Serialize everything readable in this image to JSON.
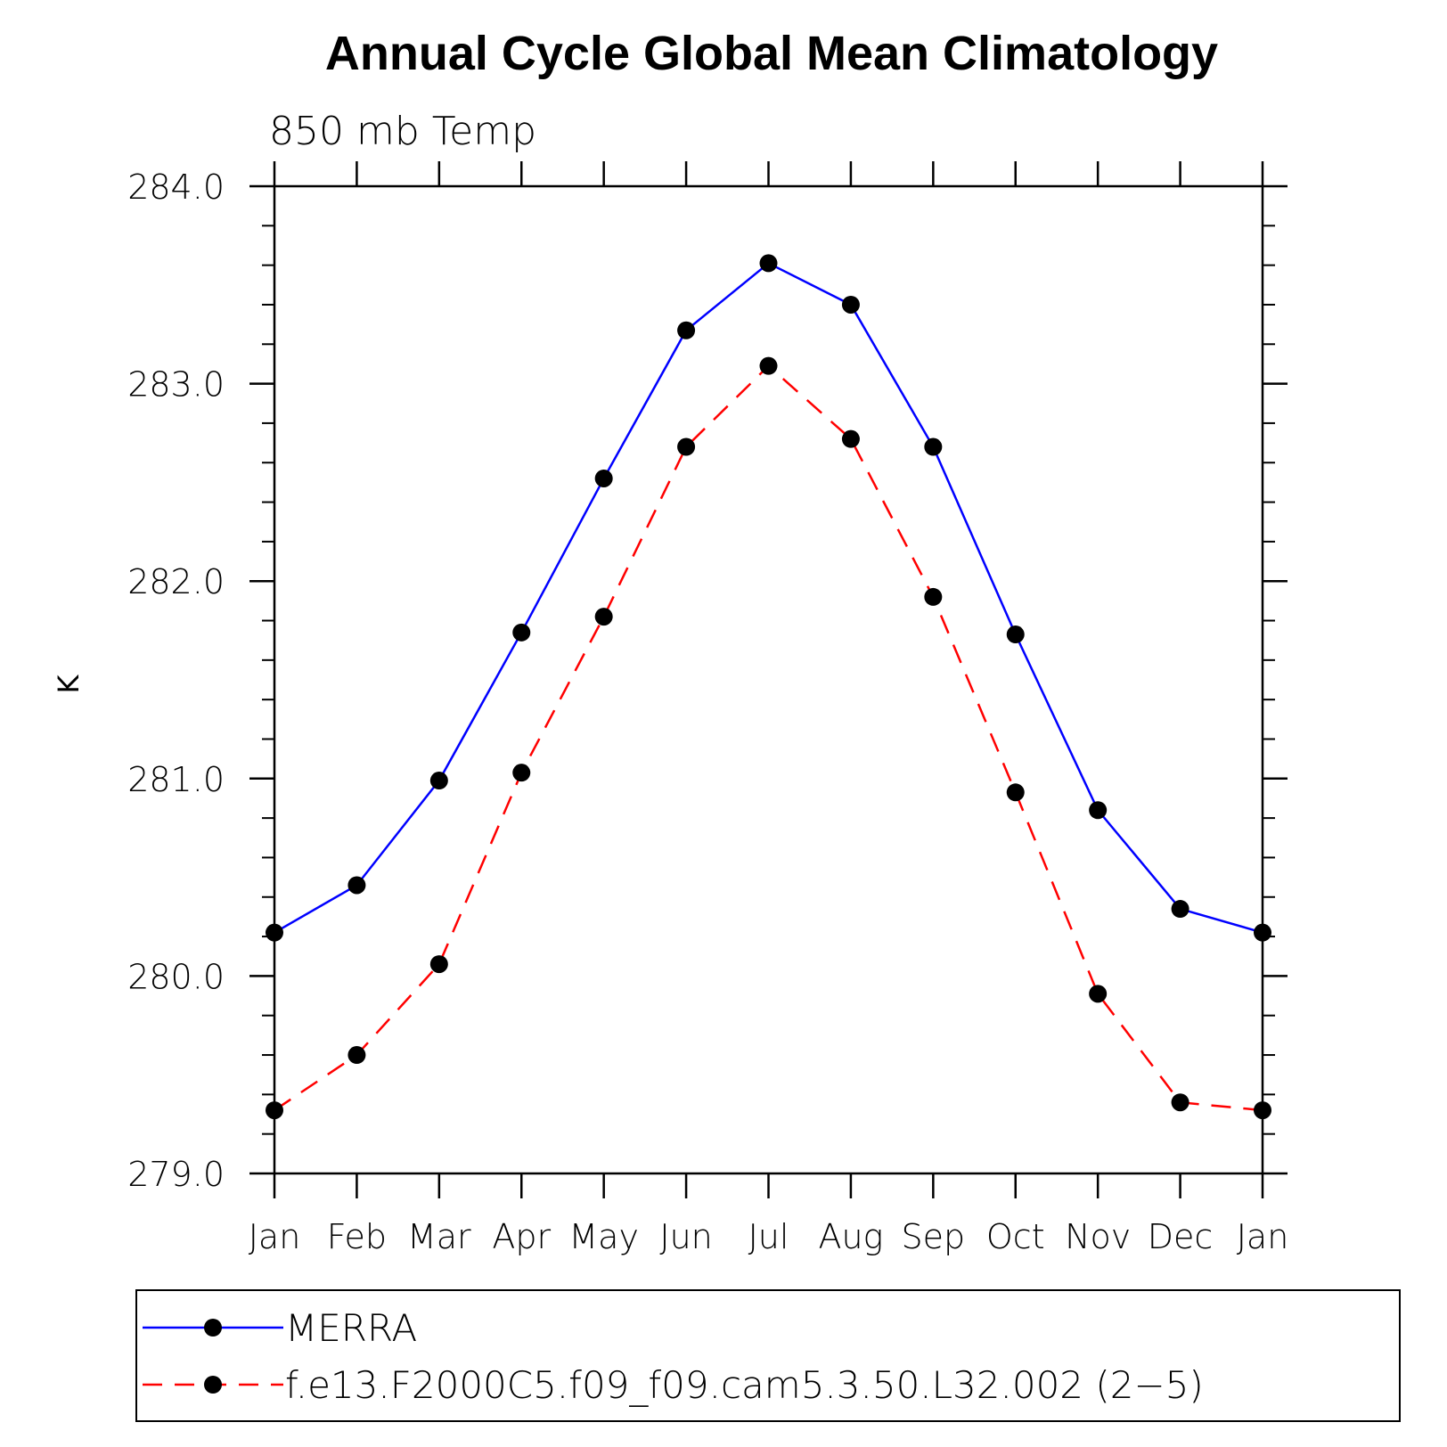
{
  "chart_data": {
    "type": "line",
    "title": "Annual Cycle Global Mean Climatology",
    "subtitle": "850 mb Temp",
    "ylabel": "K",
    "xlabel": "",
    "categories": [
      "Jan",
      "Feb",
      "Mar",
      "Apr",
      "May",
      "Jun",
      "Jul",
      "Aug",
      "Sep",
      "Oct",
      "Nov",
      "Dec",
      "Jan"
    ],
    "ylim": [
      279.0,
      284.0
    ],
    "yticks": [
      "279.0",
      "280.0",
      "281.0",
      "282.0",
      "283.0",
      "284.0"
    ],
    "yticks_values": [
      279.0,
      280.0,
      281.0,
      282.0,
      283.0,
      284.0
    ],
    "y_minor_step": 0.2,
    "grid": false,
    "legend_position": "bottom",
    "series": [
      {
        "name": "MERRA",
        "color": "#0000ff",
        "line_style": "solid",
        "marker": "filled-circle",
        "values": [
          280.22,
          280.46,
          280.99,
          281.74,
          282.52,
          283.27,
          283.61,
          283.4,
          282.68,
          281.73,
          280.84,
          280.34,
          280.22
        ]
      },
      {
        "name": "f.e13.F2000C5.f09_f09.cam5.3.50.L32.002 (2−5)",
        "color": "#ff0000",
        "line_style": "dashed",
        "marker": "filled-circle",
        "values": [
          279.32,
          279.6,
          280.06,
          281.03,
          281.82,
          282.68,
          283.09,
          282.72,
          281.92,
          280.93,
          279.91,
          279.36,
          279.32
        ]
      }
    ]
  }
}
